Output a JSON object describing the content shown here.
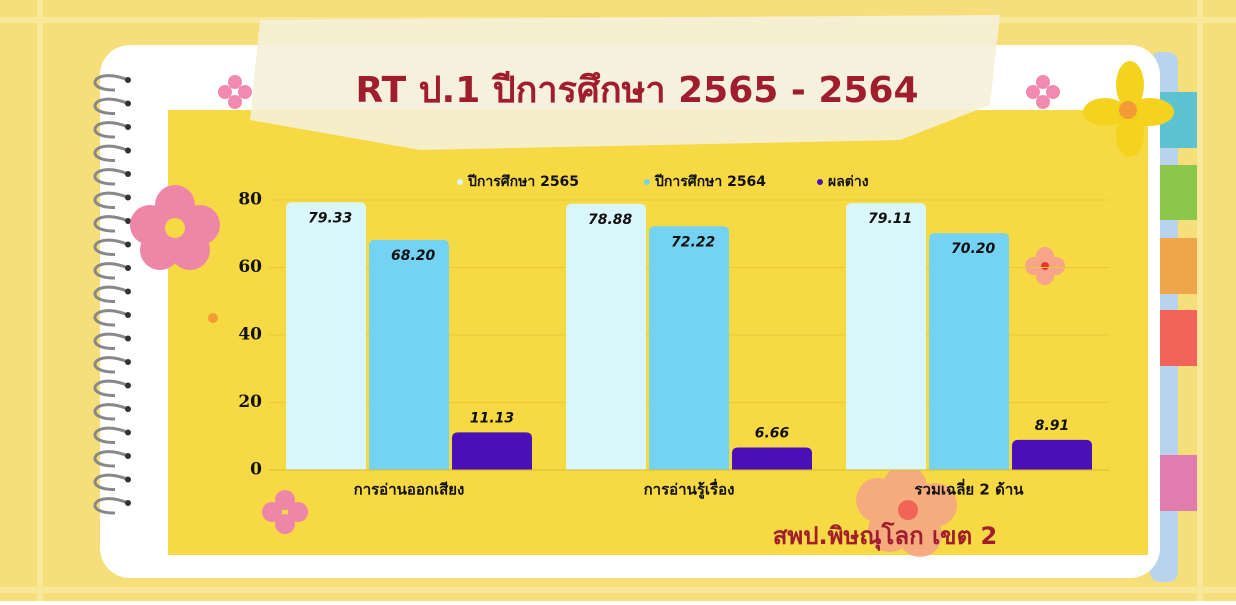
{
  "chart_data": {
    "type": "bar",
    "title": "RT ป.1 ปีการศึกษา 2565 - 2564",
    "footer": "สพป.พิษณุโลก เขต 2",
    "categories": [
      "การอ่านออกเสียง",
      "การอ่านรู้เรื่อง",
      "รวมเฉลี่ย 2 ด้าน"
    ],
    "series": [
      {
        "name": "ปีการศึกษา 2565",
        "color": "#d9f7fb",
        "values": [
          79.33,
          78.88,
          79.11
        ],
        "value_labels": [
          "79.33",
          "78.88",
          "79.11"
        ]
      },
      {
        "name": "ปีการศึกษา 2564",
        "color": "#74d3f2",
        "values": [
          68.2,
          72.22,
          70.2
        ],
        "value_labels": [
          "68.20",
          "72.22",
          "70.20"
        ]
      },
      {
        "name": "ผลต่าง",
        "color": "#4a10b8",
        "values": [
          11.13,
          6.66,
          8.91
        ],
        "value_labels": [
          "11.13",
          "6.66",
          "8.91"
        ]
      }
    ],
    "ylim": [
      0,
      80
    ],
    "yticks": [
      0,
      20,
      40,
      60,
      80
    ],
    "grid": true,
    "legend": "top"
  }
}
